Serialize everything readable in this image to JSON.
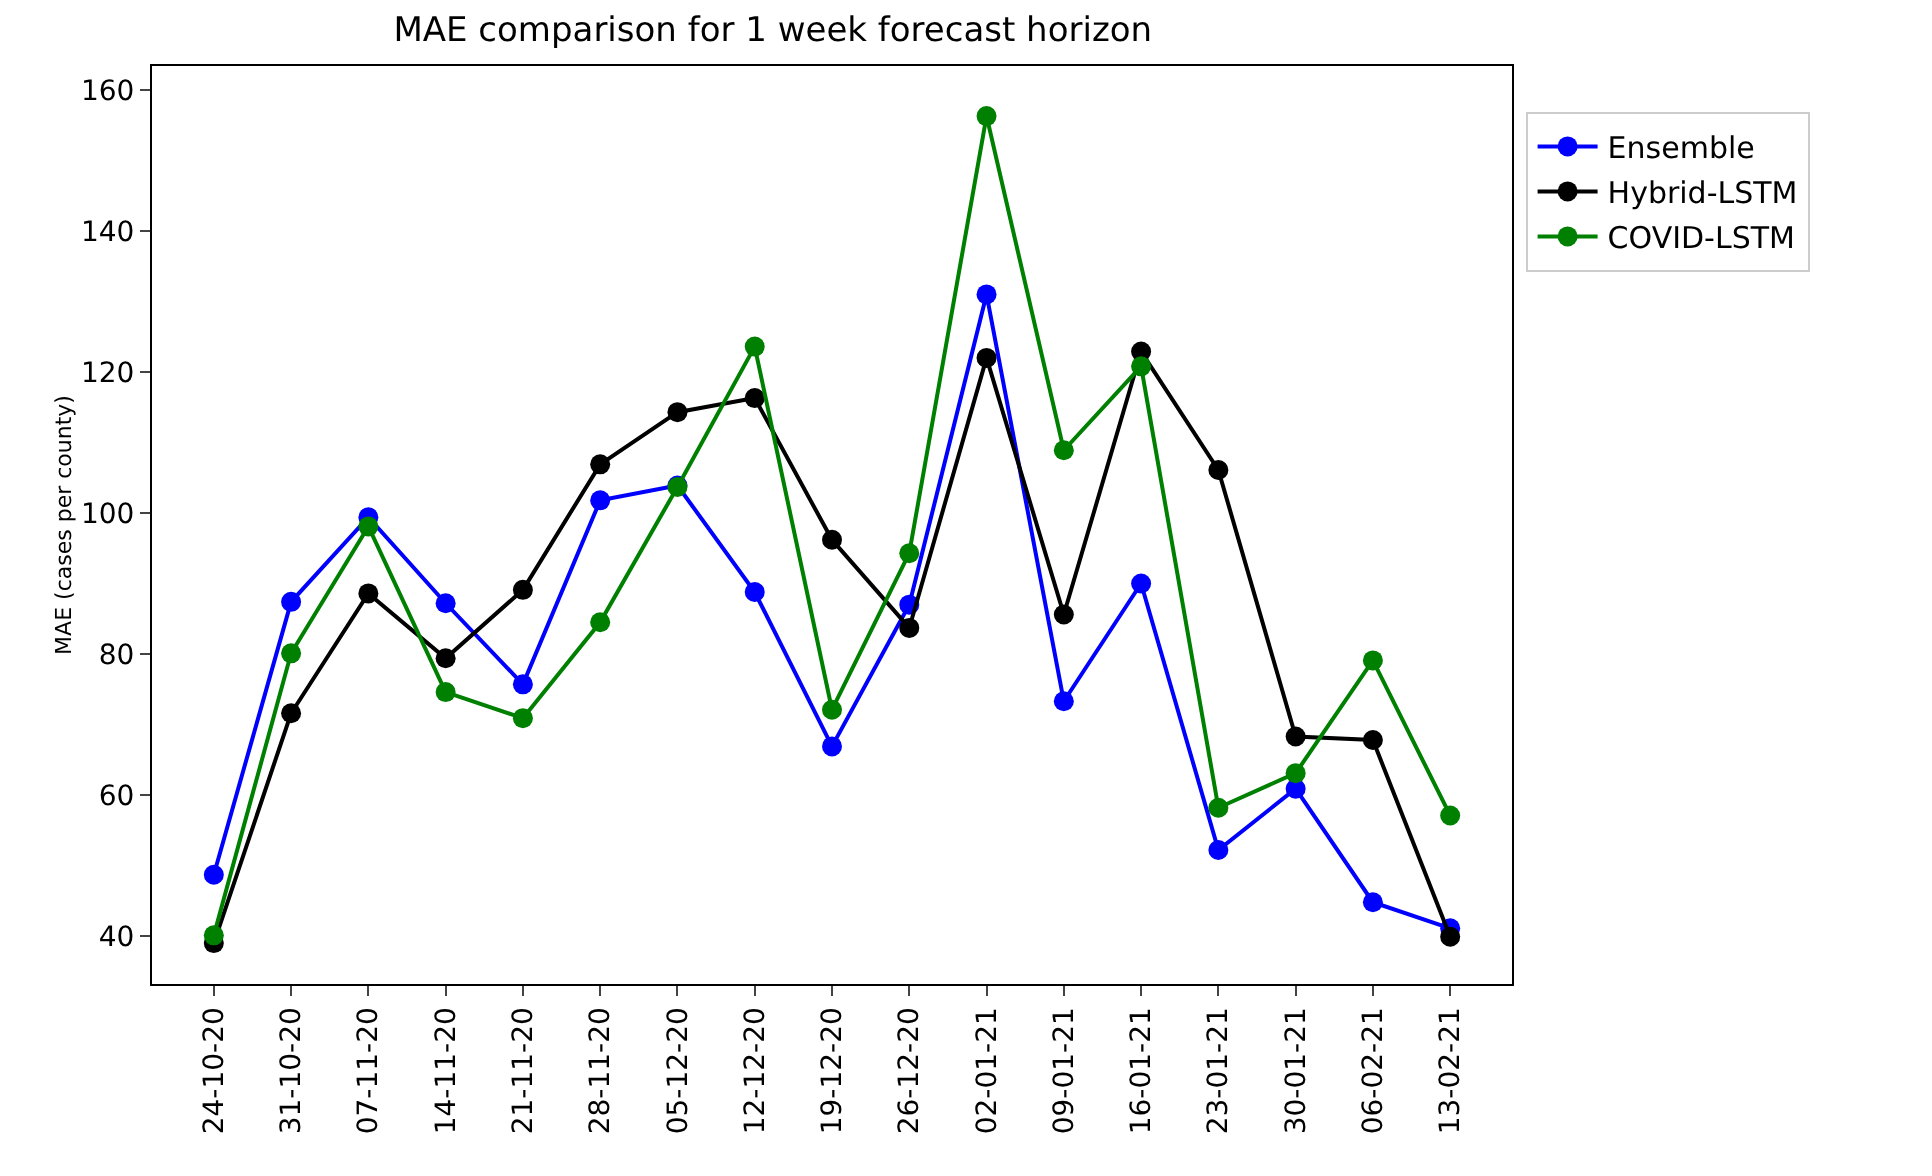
{
  "chart_data": {
    "type": "line",
    "title": "MAE comparison for 1 week forecast horizon",
    "ylabel": "MAE (cases per county)",
    "categories": [
      "24-10-20",
      "31-10-20",
      "07-11-20",
      "14-11-20",
      "21-11-20",
      "28-11-20",
      "05-12-20",
      "12-12-20",
      "19-12-20",
      "26-12-20",
      "02-01-21",
      "09-01-21",
      "16-01-21",
      "23-01-21",
      "30-01-21",
      "06-02-21",
      "13-02-21"
    ],
    "series": [
      {
        "name": "Ensemble",
        "color": "#0000ff",
        "values": [
          48.7,
          87.4,
          99.4,
          87.2,
          75.7,
          101.8,
          103.9,
          88.8,
          66.9,
          87.0,
          131.0,
          73.3,
          90.0,
          52.2,
          60.9,
          44.8,
          41.1
        ]
      },
      {
        "name": "Hybrid-LSTM",
        "color": "#000000",
        "values": [
          39.0,
          71.6,
          88.6,
          79.4,
          89.1,
          106.9,
          114.3,
          116.3,
          96.2,
          83.7,
          122.0,
          85.6,
          122.9,
          106.1,
          68.3,
          67.8,
          39.9
        ]
      },
      {
        "name": "COVID-LSTM",
        "color": "#008000",
        "values": [
          40.1,
          80.1,
          98.1,
          74.6,
          70.9,
          84.5,
          103.7,
          123.6,
          72.1,
          94.3,
          156.3,
          108.9,
          120.8,
          58.2,
          63.1,
          79.1,
          57.1
        ]
      }
    ],
    "ylim": [
      33.2,
      163.4
    ],
    "yticks": [
      40,
      60,
      80,
      100,
      120,
      140,
      160
    ],
    "grid": false,
    "legend": "top right",
    "marker": "circle",
    "line_style": "solid"
  }
}
